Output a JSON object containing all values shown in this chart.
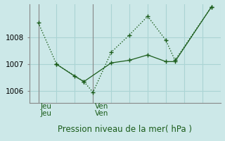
{
  "background_color": "#cce8e8",
  "grid_color": "#aad4d4",
  "line_color": "#1a5c1a",
  "xlabel": "Pression niveau de la mer( hPa )",
  "ylim": [
    1005.55,
    1009.25
  ],
  "yticks": [
    1006,
    1007,
    1008
  ],
  "ytick_fontsize": 7.5,
  "xlabel_fontsize": 8.5,
  "label_fontsize": 7.5,
  "vline_color": "#888888",
  "spine_color": "#888888",
  "n_x_total": 10,
  "jeu_x": 0,
  "ven_x": 3,
  "line1_x": [
    0,
    1,
    2.5,
    3,
    4,
    5,
    6,
    7,
    7.5,
    9.5
  ],
  "line1_y": [
    1008.55,
    1007.0,
    1006.35,
    1005.95,
    1007.45,
    1008.1,
    1008.8,
    1007.9,
    1007.15,
    1009.15
  ],
  "line2_x": [
    1,
    2,
    2.5,
    4,
    5,
    6,
    7,
    7.5,
    9.5
  ],
  "line2_y": [
    1007.0,
    1006.55,
    1006.35,
    1007.05,
    1007.15,
    1007.35,
    1007.1,
    1007.1,
    1009.15
  ],
  "xlim": [
    -0.5,
    10.0
  ]
}
